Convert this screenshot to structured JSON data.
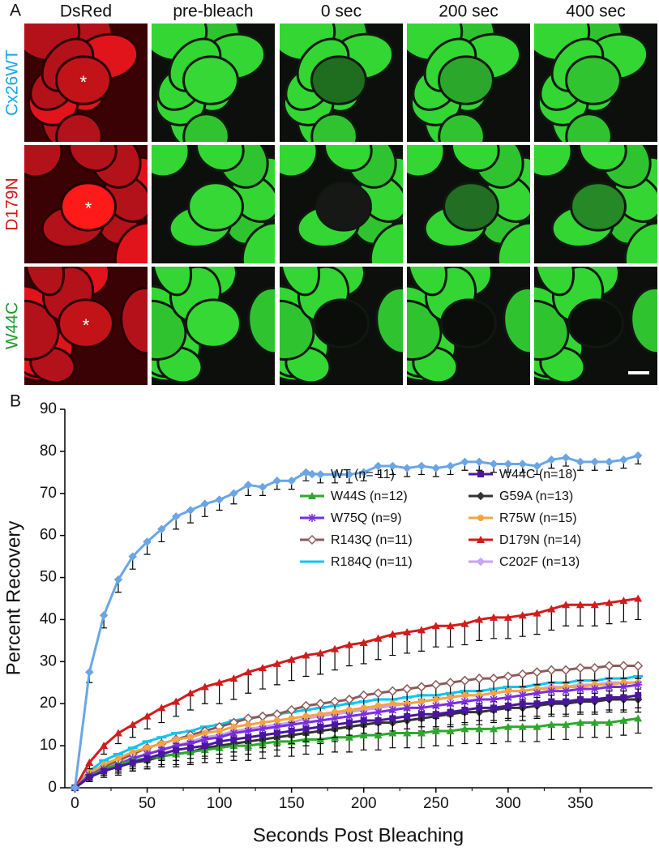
{
  "panel_a": {
    "label": "A",
    "columns": [
      "DsRed",
      "pre-bleach",
      "0 sec",
      "200 sec",
      "400 sec"
    ],
    "rows": [
      {
        "label": "Cx26WT",
        "color": "#19a6e3"
      },
      {
        "label": "D179N",
        "color": "#d01c1c"
      },
      {
        "label": "W44C",
        "color": "#1f9a2e"
      }
    ],
    "asterisk": "*"
  },
  "chart_data": {
    "type": "line",
    "panel_label": "B",
    "x_label": "Seconds Post Bleaching",
    "y_label": "Percent Recovery",
    "xlim": [
      -7,
      400
    ],
    "xticks": [
      0,
      50,
      100,
      150,
      200,
      250,
      300,
      350
    ],
    "ylim": [
      0,
      90
    ],
    "yticks": [
      0,
      10,
      20,
      30,
      40,
      50,
      60,
      70,
      80,
      90
    ],
    "grid": false,
    "x": [
      0,
      10,
      20,
      30,
      40,
      50,
      60,
      70,
      80,
      90,
      100,
      110,
      120,
      130,
      140,
      150,
      160,
      170,
      180,
      190,
      200,
      210,
      220,
      230,
      240,
      250,
      260,
      270,
      280,
      290,
      300,
      310,
      320,
      330,
      340,
      350,
      360,
      370,
      380,
      390
    ],
    "series": [
      {
        "name": "WT (n= 11)",
        "color": "#6aa6e6",
        "marker": "diamond",
        "values": [
          0,
          27.5,
          41,
          49.5,
          55,
          58.5,
          61.5,
          64.5,
          66,
          67.5,
          68.5,
          70,
          72,
          71.5,
          73,
          73,
          75,
          74.5,
          74.5,
          74.5,
          75,
          76.5,
          76.5,
          76,
          76.5,
          76,
          76.5,
          77.5,
          77.5,
          77,
          77,
          77,
          76.5,
          78,
          78.5,
          77.5,
          77.5,
          77.5,
          78,
          79
        ],
        "errors": [
          0,
          2.5,
          3,
          3,
          3,
          3,
          3,
          3,
          3,
          3,
          2.5,
          2.5,
          2.5,
          2,
          2,
          2,
          2,
          2,
          2,
          2,
          2,
          2,
          2,
          2,
          2,
          2,
          2,
          2,
          2,
          2,
          2,
          2,
          2,
          2,
          2,
          2,
          2,
          2,
          2,
          2
        ]
      },
      {
        "name": "W44C (n=18)",
        "color": "#4a16a0",
        "marker": "square",
        "values": [
          0,
          2.5,
          4,
          5,
          6,
          7,
          8,
          9,
          9.5,
          10,
          11,
          11.5,
          12,
          12.5,
          13,
          13.5,
          14,
          14.5,
          15,
          15.5,
          16,
          16,
          16.5,
          17,
          17.5,
          17.5,
          18,
          18.5,
          19,
          19,
          19.5,
          20,
          20,
          20.5,
          20.5,
          21,
          21,
          21.5,
          21.5,
          22
        ],
        "errors": [
          0,
          1,
          1.5,
          2,
          2,
          2,
          2.5,
          2.5,
          2.5,
          2.5,
          3,
          3,
          3,
          3,
          3,
          3,
          3,
          3,
          3,
          3,
          3,
          3,
          3,
          3,
          3,
          3,
          3,
          3,
          3,
          3,
          3,
          3,
          3,
          3,
          3,
          3,
          3,
          3,
          3,
          3
        ]
      },
      {
        "name": "W44S (n=12)",
        "color": "#2da82d",
        "marker": "triangle",
        "values": [
          0,
          2.5,
          4.5,
          5.5,
          6.5,
          7,
          7.5,
          8,
          8.5,
          9,
          9.5,
          10,
          10,
          10.5,
          11,
          11,
          11.5,
          11.5,
          12,
          12,
          12.5,
          12.5,
          13,
          13,
          13,
          13.5,
          13.5,
          14,
          14,
          14,
          14.5,
          14.5,
          14.5,
          15,
          15,
          15.5,
          15.5,
          15.5,
          16,
          16.5
        ],
        "errors": [
          0,
          1,
          1.5,
          2,
          2,
          2.5,
          2.5,
          3,
          3,
          3,
          3.5,
          3.5,
          3.5,
          3.5,
          3.5,
          3.5,
          3.5,
          3.5,
          3.5,
          3.5,
          3.5,
          3.5,
          3.5,
          3.5,
          3.5,
          3.5,
          3.5,
          3.5,
          3.5,
          3.5,
          3.5,
          3.5,
          3.5,
          3.5,
          3.5,
          3.5,
          3.5,
          3.5,
          3.5,
          3.5
        ]
      },
      {
        "name": "G59A (n=13)",
        "color": "#333333",
        "marker": "diamond",
        "values": [
          0,
          2.5,
          4,
          5,
          6,
          6.5,
          7.5,
          8,
          8.5,
          9.5,
          10,
          10.5,
          11,
          11.5,
          12,
          12.5,
          13,
          13.5,
          14,
          14.5,
          15,
          15.5,
          15.5,
          16,
          16.5,
          17,
          17.5,
          18,
          18,
          18.5,
          19,
          19,
          19.5,
          20,
          20,
          20.5,
          20.5,
          21,
          21,
          21
        ],
        "errors": [
          0,
          1,
          1.5,
          2,
          2,
          2,
          2.5,
          2.5,
          2.5,
          2.5,
          3,
          3,
          3,
          3,
          3,
          3,
          3,
          3,
          3,
          3,
          3,
          3,
          3,
          3,
          3,
          3,
          3,
          3,
          3,
          3,
          3,
          3,
          3,
          3,
          3,
          3,
          3,
          3,
          3,
          3
        ]
      },
      {
        "name": "W75Q (n=9)",
        "color": "#7a2ee0",
        "marker": "asterisk",
        "values": [
          0,
          3,
          4.5,
          5.5,
          7,
          8,
          9,
          10,
          10.5,
          11.5,
          12,
          13,
          13.5,
          14,
          14.5,
          15,
          15.5,
          16,
          16.5,
          17,
          17.5,
          18,
          18.5,
          19,
          19,
          19.5,
          20,
          20.5,
          21,
          21,
          21.5,
          22,
          22.5,
          23,
          23,
          23.5,
          23.5,
          24,
          24,
          24.5
        ],
        "errors": [
          0,
          1,
          1.5,
          2,
          2,
          2,
          2.5,
          2.5,
          2.5,
          2.5,
          3,
          3,
          3,
          3,
          3,
          3,
          3,
          3,
          3,
          3,
          3,
          3,
          3,
          3,
          3,
          3,
          3,
          3,
          3,
          3,
          3,
          3,
          3,
          3,
          3,
          3,
          3,
          3,
          3,
          3
        ]
      },
      {
        "name": "R75W (n=15)",
        "color": "#f4a443",
        "marker": "circle",
        "values": [
          0,
          3.5,
          5.5,
          7,
          8.5,
          9.5,
          10.5,
          11.5,
          12,
          13,
          13.5,
          14.5,
          15,
          15.5,
          16,
          16.5,
          17,
          17.5,
          18,
          18.5,
          19,
          19.5,
          20,
          20,
          20.5,
          21,
          21.5,
          22,
          22,
          22.5,
          23,
          23,
          23.5,
          23.5,
          24,
          24,
          24.5,
          24.5,
          25,
          25
        ],
        "errors": [
          0,
          1,
          1.5,
          2,
          2,
          2,
          2.5,
          2.5,
          2.5,
          2.5,
          3,
          3,
          3,
          3,
          3,
          3,
          3,
          3,
          3,
          3,
          3,
          3,
          3,
          3,
          3,
          3,
          3,
          3,
          3,
          3,
          3,
          3,
          3,
          3,
          3,
          3,
          3,
          3,
          3,
          3
        ]
      },
      {
        "name": "R143Q (n=11)",
        "color": "#8c5a5a",
        "marker": "open-diamond",
        "values": [
          0,
          3,
          5,
          6.5,
          8,
          9.5,
          10.5,
          11.5,
          12.5,
          13.5,
          14.5,
          15.5,
          16.5,
          17,
          17.5,
          18.5,
          19.5,
          20,
          20.5,
          21,
          22,
          22.5,
          23,
          23.5,
          24,
          24.5,
          25,
          25.5,
          26,
          26,
          26.5,
          27,
          27.5,
          28,
          28,
          28.5,
          28.5,
          29,
          29,
          29
        ],
        "errors": [
          0,
          1,
          1.5,
          2,
          2,
          2,
          2.5,
          2.5,
          2.5,
          2.5,
          3,
          3,
          3,
          3,
          3,
          3,
          3,
          3,
          3,
          3,
          3,
          3,
          3,
          3,
          3,
          3,
          3,
          3,
          3,
          3,
          3,
          3,
          3,
          3,
          3,
          3,
          3,
          3,
          3,
          3
        ]
      },
      {
        "name": "D179N (n=14)",
        "color": "#d21c1c",
        "marker": "triangle",
        "values": [
          0,
          6,
          10,
          13,
          15,
          17,
          19,
          20.5,
          22.5,
          24,
          25,
          26,
          27.5,
          28.5,
          29.5,
          30.5,
          31.5,
          32,
          33,
          34,
          34.5,
          35.5,
          36.5,
          37,
          37.5,
          38.5,
          38.5,
          39,
          40,
          40.5,
          40.5,
          41,
          41.5,
          42.5,
          43.5,
          43.5,
          43.5,
          44,
          44.5,
          45
        ],
        "errors": [
          0,
          1.5,
          2,
          2.5,
          3,
          3,
          3.5,
          3.5,
          4,
          4,
          5,
          5,
          5,
          5,
          5,
          5,
          5,
          5,
          5,
          5,
          5,
          5,
          5,
          5,
          5,
          5,
          5,
          5,
          5,
          5,
          5,
          5,
          5,
          5,
          5,
          5,
          5,
          5,
          5,
          5
        ]
      },
      {
        "name": "R184Q (n=11)",
        "color": "#10c4f0",
        "marker": "dash",
        "values": [
          0,
          4,
          6.5,
          8,
          9.5,
          11,
          12,
          13,
          13.5,
          14.5,
          15,
          16,
          16.5,
          17,
          17.5,
          18,
          18.5,
          19,
          19.5,
          20,
          20.5,
          21,
          21,
          21.5,
          22,
          22,
          22.5,
          23,
          23,
          23.5,
          24,
          24,
          24.5,
          25,
          25,
          25.5,
          25.5,
          26,
          26,
          26.5
        ],
        "errors": [
          0,
          1,
          1.5,
          2,
          2,
          2,
          2.5,
          2.5,
          2.5,
          2.5,
          3,
          3,
          3,
          3,
          3,
          3,
          3,
          3,
          3,
          3,
          3,
          3,
          3,
          3,
          3,
          3,
          3,
          3,
          3,
          3,
          3,
          3,
          3,
          3,
          3,
          3,
          3,
          3,
          3,
          3
        ]
      },
      {
        "name": "C202F (n=13)",
        "color": "#c9a2f2",
        "marker": "diamond",
        "values": [
          0,
          2.5,
          4.5,
          6,
          7,
          8,
          9,
          10,
          11,
          12,
          12.5,
          13.5,
          14,
          14.5,
          15,
          15.5,
          16.5,
          17,
          17.5,
          18,
          18.5,
          19,
          19.5,
          20,
          20.5,
          21,
          21.5,
          22,
          22,
          22.5,
          23,
          23,
          23.5,
          24,
          24,
          24.5,
          24.5,
          25,
          25,
          25
        ],
        "errors": [
          0,
          1,
          1.5,
          2,
          2,
          2,
          2.5,
          2.5,
          2.5,
          2.5,
          3,
          3,
          3,
          3,
          3,
          3,
          3,
          3,
          3,
          3,
          3,
          3,
          3,
          3,
          3,
          3,
          3,
          3,
          3,
          3,
          3,
          3,
          3,
          3,
          3,
          3,
          3,
          3,
          3,
          3
        ]
      }
    ]
  }
}
